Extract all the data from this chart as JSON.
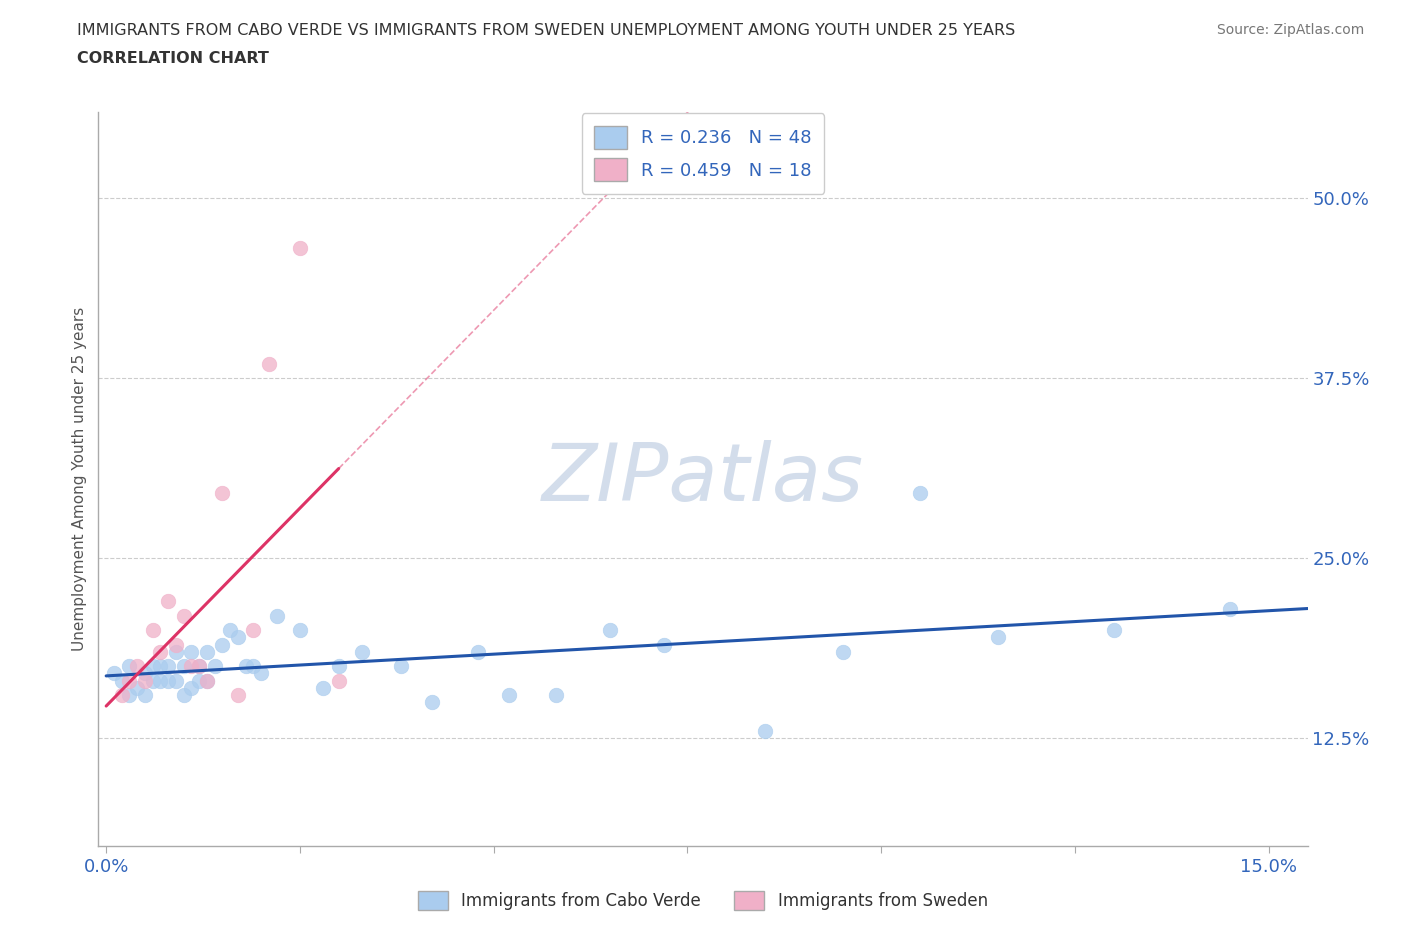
{
  "title_line1": "IMMIGRANTS FROM CABO VERDE VS IMMIGRANTS FROM SWEDEN UNEMPLOYMENT AMONG YOUTH UNDER 25 YEARS",
  "title_line2": "CORRELATION CHART",
  "source_text": "Source: ZipAtlas.com",
  "ylabel": "Unemployment Among Youth under 25 years",
  "xlim": [
    -0.001,
    0.155
  ],
  "ylim": [
    0.05,
    0.56
  ],
  "ytick_positions": [
    0.125,
    0.25,
    0.375,
    0.5
  ],
  "ytick_labels": [
    "12.5%",
    "25.0%",
    "37.5%",
    "50.0%"
  ],
  "xtick_positions": [
    0.0,
    0.025,
    0.05,
    0.075,
    0.1,
    0.125,
    0.15
  ],
  "xtick_labels": [
    "0.0%",
    "",
    "",
    "",
    "",
    "",
    "15.0%"
  ],
  "grid_color": "#cccccc",
  "background_color": "#ffffff",
  "watermark": "ZIPatlas",
  "watermark_color": "#ccd8e8",
  "cabo_verde_color": "#aaccee",
  "sweden_color": "#f0b0c8",
  "cabo_verde_line_color": "#2255aa",
  "sweden_line_color": "#dd3366",
  "cabo_verde_R": 0.236,
  "cabo_verde_N": 48,
  "sweden_R": 0.459,
  "sweden_N": 18,
  "cv_x": [
    0.001,
    0.002,
    0.003,
    0.003,
    0.004,
    0.005,
    0.005,
    0.006,
    0.006,
    0.007,
    0.007,
    0.008,
    0.008,
    0.009,
    0.009,
    0.01,
    0.01,
    0.011,
    0.011,
    0.012,
    0.012,
    0.013,
    0.013,
    0.014,
    0.015,
    0.016,
    0.017,
    0.018,
    0.019,
    0.02,
    0.022,
    0.025,
    0.028,
    0.03,
    0.033,
    0.038,
    0.042,
    0.048,
    0.052,
    0.058,
    0.065,
    0.072,
    0.085,
    0.095,
    0.105,
    0.115,
    0.13,
    0.145
  ],
  "cv_y": [
    0.17,
    0.165,
    0.155,
    0.175,
    0.16,
    0.17,
    0.155,
    0.175,
    0.165,
    0.175,
    0.165,
    0.175,
    0.165,
    0.185,
    0.165,
    0.175,
    0.155,
    0.185,
    0.16,
    0.175,
    0.165,
    0.165,
    0.185,
    0.175,
    0.19,
    0.2,
    0.195,
    0.175,
    0.175,
    0.17,
    0.21,
    0.2,
    0.16,
    0.175,
    0.185,
    0.175,
    0.15,
    0.185,
    0.155,
    0.155,
    0.2,
    0.19,
    0.13,
    0.185,
    0.295,
    0.195,
    0.2,
    0.215
  ],
  "sw_x": [
    0.002,
    0.003,
    0.004,
    0.005,
    0.006,
    0.007,
    0.008,
    0.009,
    0.01,
    0.011,
    0.012,
    0.013,
    0.015,
    0.017,
    0.019,
    0.021,
    0.025,
    0.03
  ],
  "sw_y": [
    0.155,
    0.165,
    0.175,
    0.165,
    0.2,
    0.185,
    0.22,
    0.19,
    0.21,
    0.175,
    0.175,
    0.165,
    0.295,
    0.155,
    0.2,
    0.385,
    0.465,
    0.165
  ]
}
